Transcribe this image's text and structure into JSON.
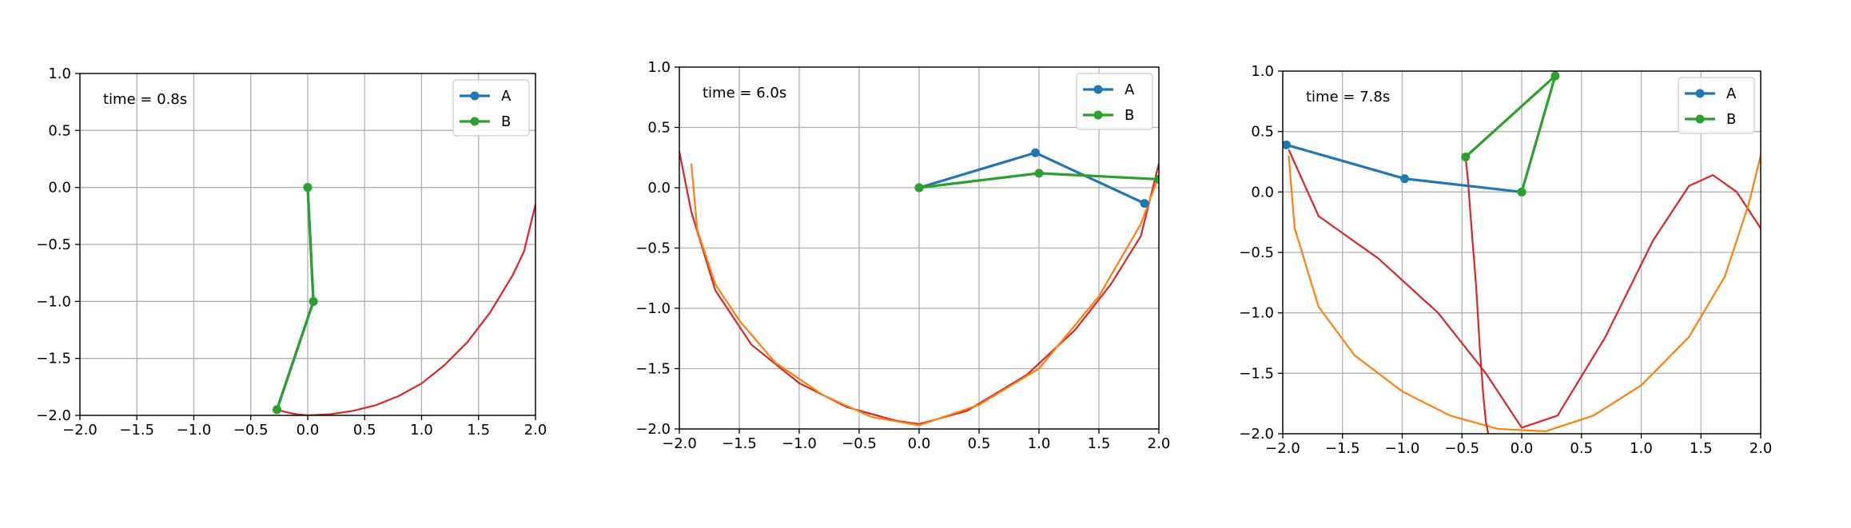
{
  "colors": {
    "A": "#1f77b4",
    "B": "#2ca02c",
    "traceA": "#ff7f0e",
    "traceB": "#d62728",
    "grid": "#b0b0b0"
  },
  "chart_data": [
    {
      "type": "line",
      "annotation": "time = 0.8s",
      "xlim": [
        -2.0,
        2.0
      ],
      "ylim": [
        -2.0,
        1.0
      ],
      "xticks": [
        -2.0,
        -1.5,
        -1.0,
        -0.5,
        0.0,
        0.5,
        1.0,
        1.5,
        2.0
      ],
      "yticks": [
        1.0,
        0.5,
        0.0,
        -0.5,
        -1.0,
        -1.5,
        -2.0
      ],
      "xtick_labels": [
        "−2.0",
        "−1.5",
        "−1.0",
        "−0.5",
        "0.0",
        "0.5",
        "1.0",
        "1.5",
        "2.0"
      ],
      "ytick_labels": [
        "1.0",
        "0.5",
        "0.0",
        "−0.5",
        "−1.0",
        "−1.5",
        "−2.0"
      ],
      "grid": true,
      "legend": "top-right",
      "series": [
        {
          "name": "A",
          "x": [
            0.0,
            0.05,
            -0.27
          ],
          "y": [
            0.0,
            -1.0,
            -1.95
          ]
        },
        {
          "name": "B",
          "x": [
            0.0,
            0.05,
            -0.27
          ],
          "y": [
            0.0,
            -1.0,
            -1.95
          ]
        }
      ],
      "traces": [
        {
          "x": [
            -0.3,
            -0.2,
            -0.1,
            0.0,
            0.2,
            0.4,
            0.6,
            0.8,
            1.0,
            1.2,
            1.4,
            1.6,
            1.8,
            1.9,
            2.0
          ],
          "y": [
            -1.94,
            -1.97,
            -1.99,
            -2.0,
            -1.99,
            -1.96,
            -1.91,
            -1.83,
            -1.72,
            -1.56,
            -1.36,
            -1.1,
            -0.77,
            -0.56,
            -0.15
          ]
        }
      ]
    },
    {
      "type": "line",
      "annotation": "time = 6.0s",
      "xlim": [
        -2.0,
        2.0
      ],
      "ylim": [
        -2.0,
        1.0
      ],
      "xticks": [
        -2.0,
        -1.5,
        -1.0,
        -0.5,
        0.0,
        0.5,
        1.0,
        1.5,
        2.0
      ],
      "yticks": [
        1.0,
        0.5,
        0.0,
        -0.5,
        -1.0,
        -1.5,
        -2.0
      ],
      "xtick_labels": [
        "−2.0",
        "−1.5",
        "−1.0",
        "−0.5",
        "0.0",
        "0.5",
        "1.0",
        "1.5",
        "2.0"
      ],
      "ytick_labels": [
        "1.0",
        "0.5",
        "0.0",
        "−0.5",
        "−1.0",
        "−1.5",
        "−2.0"
      ],
      "grid": true,
      "legend": "top-right",
      "series": [
        {
          "name": "A",
          "x": [
            0.0,
            0.97,
            1.88
          ],
          "y": [
            0.0,
            0.29,
            -0.13
          ]
        },
        {
          "name": "B",
          "x": [
            0.0,
            1.0,
            2.0
          ],
          "y": [
            0.0,
            0.12,
            0.07
          ]
        }
      ],
      "traces": [
        {
          "x": [
            -2.0,
            -1.9,
            -1.7,
            -1.4,
            -1.0,
            -0.6,
            -0.2,
            0.0,
            0.4,
            0.9,
            1.3,
            1.6,
            1.85,
            2.0
          ],
          "y": [
            0.3,
            -0.2,
            -0.85,
            -1.3,
            -1.62,
            -1.82,
            -1.93,
            -1.96,
            -1.85,
            -1.55,
            -1.18,
            -0.8,
            -0.4,
            0.2
          ]
        },
        {
          "x": [
            -1.9,
            -1.85,
            -1.7,
            -1.5,
            -1.2,
            -0.8,
            -0.4,
            0.0,
            0.5,
            1.0,
            1.5,
            1.85,
            2.0
          ],
          "y": [
            0.2,
            -0.35,
            -0.8,
            -1.1,
            -1.45,
            -1.72,
            -1.9,
            -1.97,
            -1.8,
            -1.5,
            -0.9,
            -0.3,
            0.1
          ]
        }
      ]
    },
    {
      "type": "line",
      "annotation": "time = 7.8s",
      "xlim": [
        -2.0,
        2.0
      ],
      "ylim": [
        -2.0,
        1.0
      ],
      "xticks": [
        -2.0,
        -1.5,
        -1.0,
        -0.5,
        0.0,
        0.5,
        1.0,
        1.5,
        2.0
      ],
      "yticks": [
        1.0,
        0.5,
        0.0,
        -0.5,
        -1.0,
        -1.5,
        -2.0
      ],
      "xtick_labels": [
        "−2.0",
        "−1.5",
        "−1.0",
        "−0.5",
        "0.0",
        "0.5",
        "1.0",
        "1.5",
        "2.0"
      ],
      "ytick_labels": [
        "1.0",
        "0.5",
        "0.0",
        "−0.5",
        "−1.0",
        "−1.5",
        "−2.0"
      ],
      "grid": true,
      "legend": "top-right",
      "series": [
        {
          "name": "A",
          "x": [
            0.0,
            -0.98,
            -1.97
          ],
          "y": [
            0.0,
            0.11,
            0.39
          ]
        },
        {
          "name": "B",
          "x": [
            0.0,
            0.28,
            -0.47
          ],
          "y": [
            0.0,
            0.96,
            0.29
          ]
        }
      ],
      "traces": [
        {
          "x": [
            -1.95,
            -1.7,
            -1.2,
            -0.7,
            -0.3,
            0.0,
            0.3,
            0.7,
            1.1,
            1.4,
            1.6,
            1.8,
            2.0
          ],
          "y": [
            0.35,
            -0.2,
            -0.55,
            -1.0,
            -1.5,
            -1.95,
            -1.85,
            -1.2,
            -0.4,
            0.05,
            0.14,
            0.0,
            -0.3
          ]
        },
        {
          "x": [
            -1.95,
            -1.9,
            -1.7,
            -1.4,
            -1.0,
            -0.6,
            -0.2,
            0.2,
            0.6,
            1.0,
            1.4,
            1.7,
            1.9,
            2.0
          ],
          "y": [
            0.3,
            -0.3,
            -0.95,
            -1.35,
            -1.65,
            -1.85,
            -1.96,
            -1.98,
            -1.85,
            -1.6,
            -1.2,
            -0.7,
            -0.1,
            0.3
          ]
        },
        {
          "x": [
            -0.47,
            -0.45,
            -0.42,
            -0.38,
            -0.35,
            -0.32,
            -0.3,
            -0.28
          ],
          "y": [
            0.29,
            0.1,
            -0.3,
            -0.8,
            -1.3,
            -1.7,
            -1.9,
            -2.0
          ]
        }
      ]
    }
  ]
}
